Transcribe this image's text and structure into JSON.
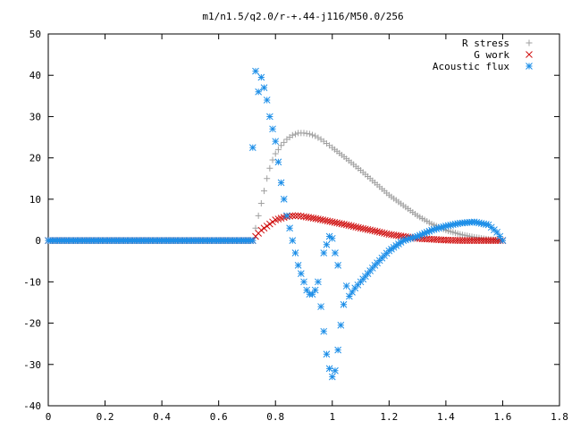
{
  "chart_data": {
    "type": "scatter",
    "title": "m1/n1.5/q2.0/r-+.44-j116/M50.0/256",
    "xlabel": "",
    "ylabel": "",
    "xlim": [
      0,
      1.8
    ],
    "ylim": [
      -40,
      50
    ],
    "x_ticks": [
      "0",
      "0.2",
      "0.4",
      "0.6",
      "0.8",
      "1",
      "1.2",
      "1.4",
      "1.6",
      "1.8"
    ],
    "y_ticks": [
      "50",
      "40",
      "30",
      "20",
      "10",
      "0",
      "-10",
      "-20",
      "-30",
      "-40"
    ],
    "grid": false,
    "legend_position": "top-right",
    "series": [
      {
        "name": "R stress",
        "marker": "plus",
        "color": "#a0a0a0",
        "points": [
          [
            0,
            0
          ],
          [
            0.72,
            0
          ],
          [
            0.73,
            3
          ],
          [
            0.74,
            6
          ],
          [
            0.75,
            9
          ],
          [
            0.76,
            12
          ],
          [
            0.77,
            15
          ],
          [
            0.78,
            17.5
          ],
          [
            0.79,
            19.5
          ],
          [
            0.8,
            21
          ],
          [
            0.82,
            23
          ],
          [
            0.84,
            24.5
          ],
          [
            0.86,
            25.5
          ],
          [
            0.88,
            26
          ],
          [
            0.9,
            26
          ],
          [
            0.92,
            25.8
          ],
          [
            0.94,
            25.3
          ],
          [
            0.96,
            24.5
          ],
          [
            0.98,
            23.5
          ],
          [
            1.0,
            22.5
          ],
          [
            1.05,
            19.8
          ],
          [
            1.1,
            17
          ],
          [
            1.15,
            14
          ],
          [
            1.2,
            11
          ],
          [
            1.25,
            8.5
          ],
          [
            1.3,
            6
          ],
          [
            1.35,
            4
          ],
          [
            1.4,
            2.5
          ],
          [
            1.45,
            1.5
          ],
          [
            1.5,
            0.8
          ],
          [
            1.55,
            0.3
          ],
          [
            1.6,
            0
          ]
        ]
      },
      {
        "name": "G work",
        "marker": "cross",
        "color": "#d01010",
        "points": [
          [
            0,
            0
          ],
          [
            0.72,
            0
          ],
          [
            0.73,
            1
          ],
          [
            0.75,
            2.5
          ],
          [
            0.78,
            4
          ],
          [
            0.8,
            5
          ],
          [
            0.84,
            5.8
          ],
          [
            0.86,
            6
          ],
          [
            0.88,
            6
          ],
          [
            0.9,
            5.8
          ],
          [
            0.95,
            5.2
          ],
          [
            1.0,
            4.5
          ],
          [
            1.05,
            3.8
          ],
          [
            1.1,
            3
          ],
          [
            1.15,
            2.3
          ],
          [
            1.2,
            1.5
          ],
          [
            1.25,
            1
          ],
          [
            1.3,
            0.5
          ],
          [
            1.35,
            0.3
          ],
          [
            1.4,
            0.1
          ],
          [
            1.45,
            0
          ],
          [
            1.5,
            0
          ],
          [
            1.6,
            0
          ]
        ]
      },
      {
        "name": "Acoustic flux",
        "marker": "star",
        "color": "#1e8fe8",
        "points": [
          [
            0,
            0
          ],
          [
            0.72,
            0
          ],
          [
            0.72,
            22.5
          ],
          [
            0.73,
            41
          ],
          [
            0.74,
            36
          ],
          [
            0.75,
            39.5
          ],
          [
            0.76,
            37
          ],
          [
            0.77,
            34
          ],
          [
            0.78,
            30
          ],
          [
            0.79,
            27
          ],
          [
            0.8,
            24
          ],
          [
            0.81,
            19
          ],
          [
            0.82,
            14
          ],
          [
            0.83,
            10
          ],
          [
            0.84,
            6
          ],
          [
            0.85,
            3
          ],
          [
            0.86,
            0
          ],
          [
            0.87,
            -3
          ],
          [
            0.88,
            -6
          ],
          [
            0.89,
            -8
          ],
          [
            0.9,
            -10
          ],
          [
            0.91,
            -12
          ],
          [
            0.92,
            -13
          ],
          [
            0.93,
            -13
          ],
          [
            0.94,
            -12
          ],
          [
            0.95,
            -10
          ],
          [
            0.96,
            -16
          ],
          [
            0.97,
            -22
          ],
          [
            0.98,
            -27.5
          ],
          [
            0.99,
            -31
          ],
          [
            1.0,
            -33
          ],
          [
            1.01,
            -31.5
          ],
          [
            1.02,
            -26.5
          ],
          [
            1.03,
            -20.5
          ],
          [
            1.04,
            -15.5
          ],
          [
            1.05,
            -11
          ],
          [
            1.06,
            -13.5
          ],
          [
            1.08,
            -11.5
          ],
          [
            1.1,
            -10
          ],
          [
            1.15,
            -6
          ],
          [
            1.2,
            -2.5
          ],
          [
            1.25,
            0
          ],
          [
            1.3,
            1
          ],
          [
            1.35,
            2.5
          ],
          [
            1.4,
            3.5
          ],
          [
            1.45,
            4.2
          ],
          [
            1.5,
            4.5
          ],
          [
            1.55,
            3.8
          ],
          [
            1.58,
            2
          ],
          [
            1.6,
            0
          ],
          [
            0.97,
            -3
          ],
          [
            0.98,
            -1
          ],
          [
            0.99,
            1
          ],
          [
            1.0,
            0.5
          ],
          [
            1.01,
            -3
          ],
          [
            1.02,
            -6
          ]
        ]
      }
    ]
  }
}
